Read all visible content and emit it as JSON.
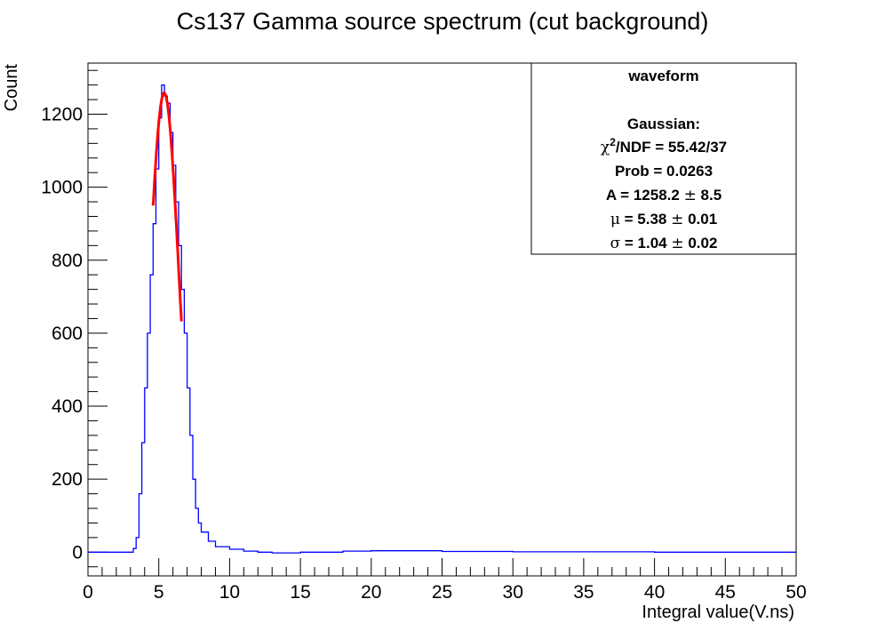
{
  "chart_data": {
    "type": "histogram",
    "title": "Cs137 Gamma source spectrum (cut background)",
    "xlabel": "Integral value(V.ns)",
    "ylabel": "Count",
    "xlim": [
      0,
      50
    ],
    "ylim": [
      -65,
      1340
    ],
    "x_ticks": [
      "0",
      "5",
      "10",
      "15",
      "20",
      "25",
      "30",
      "35",
      "40",
      "45",
      "50"
    ],
    "y_ticks": [
      "0",
      "200",
      "400",
      "600",
      "800",
      "1000",
      "1200"
    ],
    "grid": false,
    "line_color": "#0000ff",
    "fit_color": "#ff0000",
    "histogram": {
      "name": "waveform",
      "points": [
        [
          0,
          0
        ],
        [
          3.0,
          0
        ],
        [
          3.2,
          10
        ],
        [
          3.4,
          40
        ],
        [
          3.6,
          160
        ],
        [
          3.8,
          300
        ],
        [
          4.0,
          450
        ],
        [
          4.2,
          600
        ],
        [
          4.4,
          760
        ],
        [
          4.6,
          900
        ],
        [
          4.8,
          1050
        ],
        [
          5.0,
          1190
        ],
        [
          5.2,
          1280
        ],
        [
          5.4,
          1250
        ],
        [
          5.6,
          1230
        ],
        [
          5.8,
          1150
        ],
        [
          6.0,
          1060
        ],
        [
          6.2,
          960
        ],
        [
          6.4,
          840
        ],
        [
          6.6,
          720
        ],
        [
          6.8,
          600
        ],
        [
          7.0,
          450
        ],
        [
          7.2,
          320
        ],
        [
          7.4,
          200
        ],
        [
          7.6,
          120
        ],
        [
          7.8,
          80
        ],
        [
          8.0,
          55
        ],
        [
          8.5,
          30
        ],
        [
          9.0,
          15
        ],
        [
          10.0,
          8
        ],
        [
          11.0,
          3
        ],
        [
          12.0,
          0
        ],
        [
          13.0,
          -2
        ],
        [
          15.0,
          0
        ],
        [
          18.0,
          3
        ],
        [
          20.0,
          4
        ],
        [
          25.0,
          2
        ],
        [
          30.0,
          1
        ],
        [
          40.0,
          0
        ],
        [
          50.0,
          0
        ]
      ]
    },
    "fit": {
      "name": "Gaussian",
      "A": 1258.2,
      "mu": 5.38,
      "sigma": 1.04,
      "x_range": [
        4.6,
        6.6
      ]
    },
    "stats_box": {
      "legend_position": "top-right",
      "title": "waveform",
      "fit_name": "Gaussian:",
      "chi2_symbol": "χ",
      "chi2_text": "/NDF = 55.42/37",
      "chi2_sup": "2",
      "prob_text": "Prob = 0.0263",
      "a_text": "A = 1258.2 ",
      "a_err": " 8.5",
      "mu_symbol": "μ",
      "mu_text": " = 5.38 ",
      "mu_err": " 0.01",
      "sigma_symbol": "σ",
      "sigma_text": " = 1.04 ",
      "sigma_err": " 0.02",
      "pm": "±"
    }
  }
}
